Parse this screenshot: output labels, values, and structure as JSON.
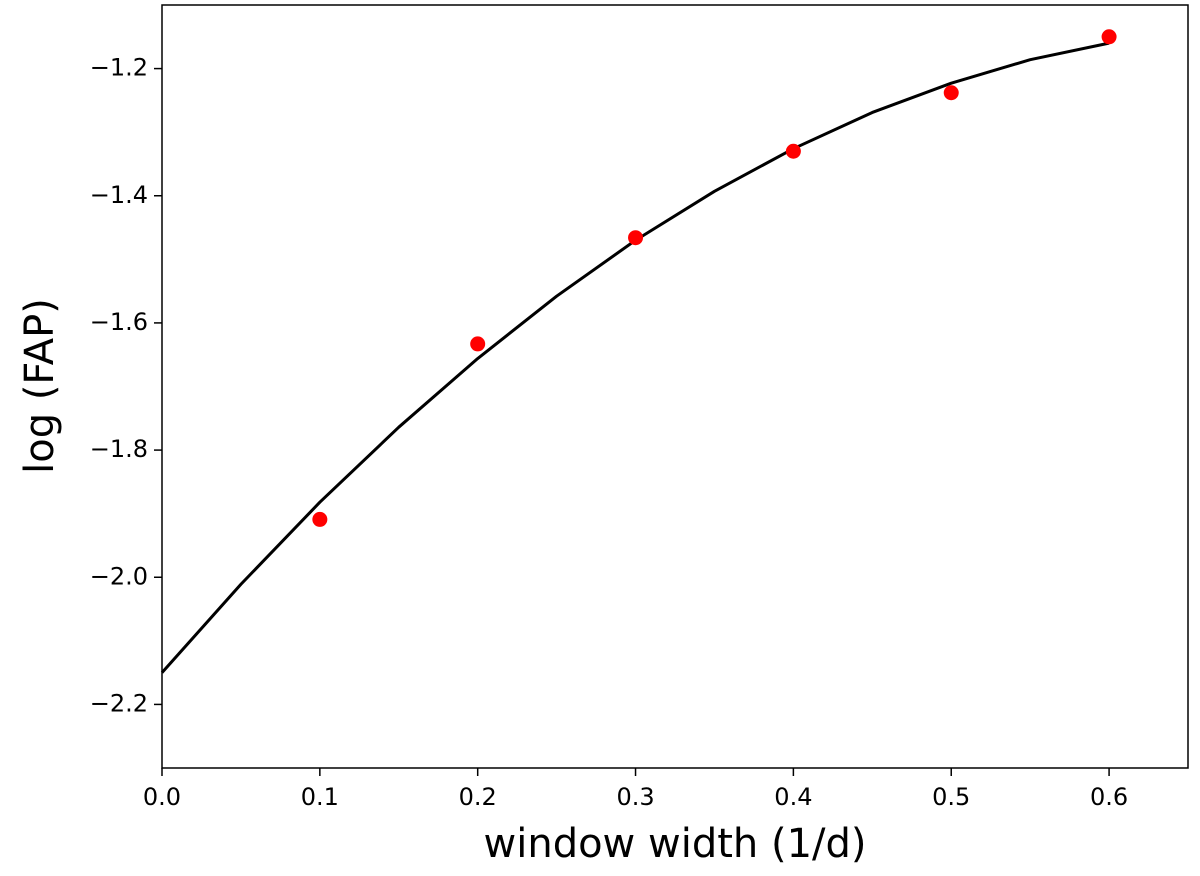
{
  "chart_data": {
    "type": "scatter",
    "xlabel": "window width (1/d)",
    "ylabel": "log (FAP)",
    "xlim": [
      0,
      0.65
    ],
    "ylim": [
      -2.3,
      -1.1
    ],
    "xticks": [
      {
        "value": 0,
        "label": "0.0"
      },
      0.1,
      0.2,
      0.3,
      0.4,
      0.5,
      0.6
    ],
    "yticks": [
      {
        "value": -2.2,
        "label": "−2.2"
      },
      {
        "value": -2.0,
        "label": "−2.0"
      },
      {
        "value": -1.8,
        "label": "−1.8"
      },
      {
        "value": -1.6,
        "label": "−1.6"
      },
      {
        "value": -1.4,
        "label": "−1.4"
      },
      {
        "value": -1.2,
        "label": "−1.2"
      }
    ],
    "grid": false,
    "series": [
      {
        "type": "line",
        "color": "#000000",
        "x": [
          0,
          0.05,
          0.1,
          0.15,
          0.2,
          0.25,
          0.3,
          0.35,
          0.4,
          0.45,
          0.5,
          0.55,
          0.6
        ],
        "values": [
          -2.15,
          -2.011,
          -1.882,
          -1.764,
          -1.656,
          -1.558,
          -1.47,
          -1.393,
          -1.326,
          -1.269,
          -1.223,
          -1.186,
          -1.16
        ]
      },
      {
        "type": "scatter",
        "color": "#ff0000",
        "x": [
          0.1,
          0.2,
          0.3,
          0.4,
          0.5,
          0.6
        ],
        "values": [
          -1.909,
          -1.633,
          -1.466,
          -1.33,
          -1.238,
          -1.15
        ]
      }
    ]
  }
}
